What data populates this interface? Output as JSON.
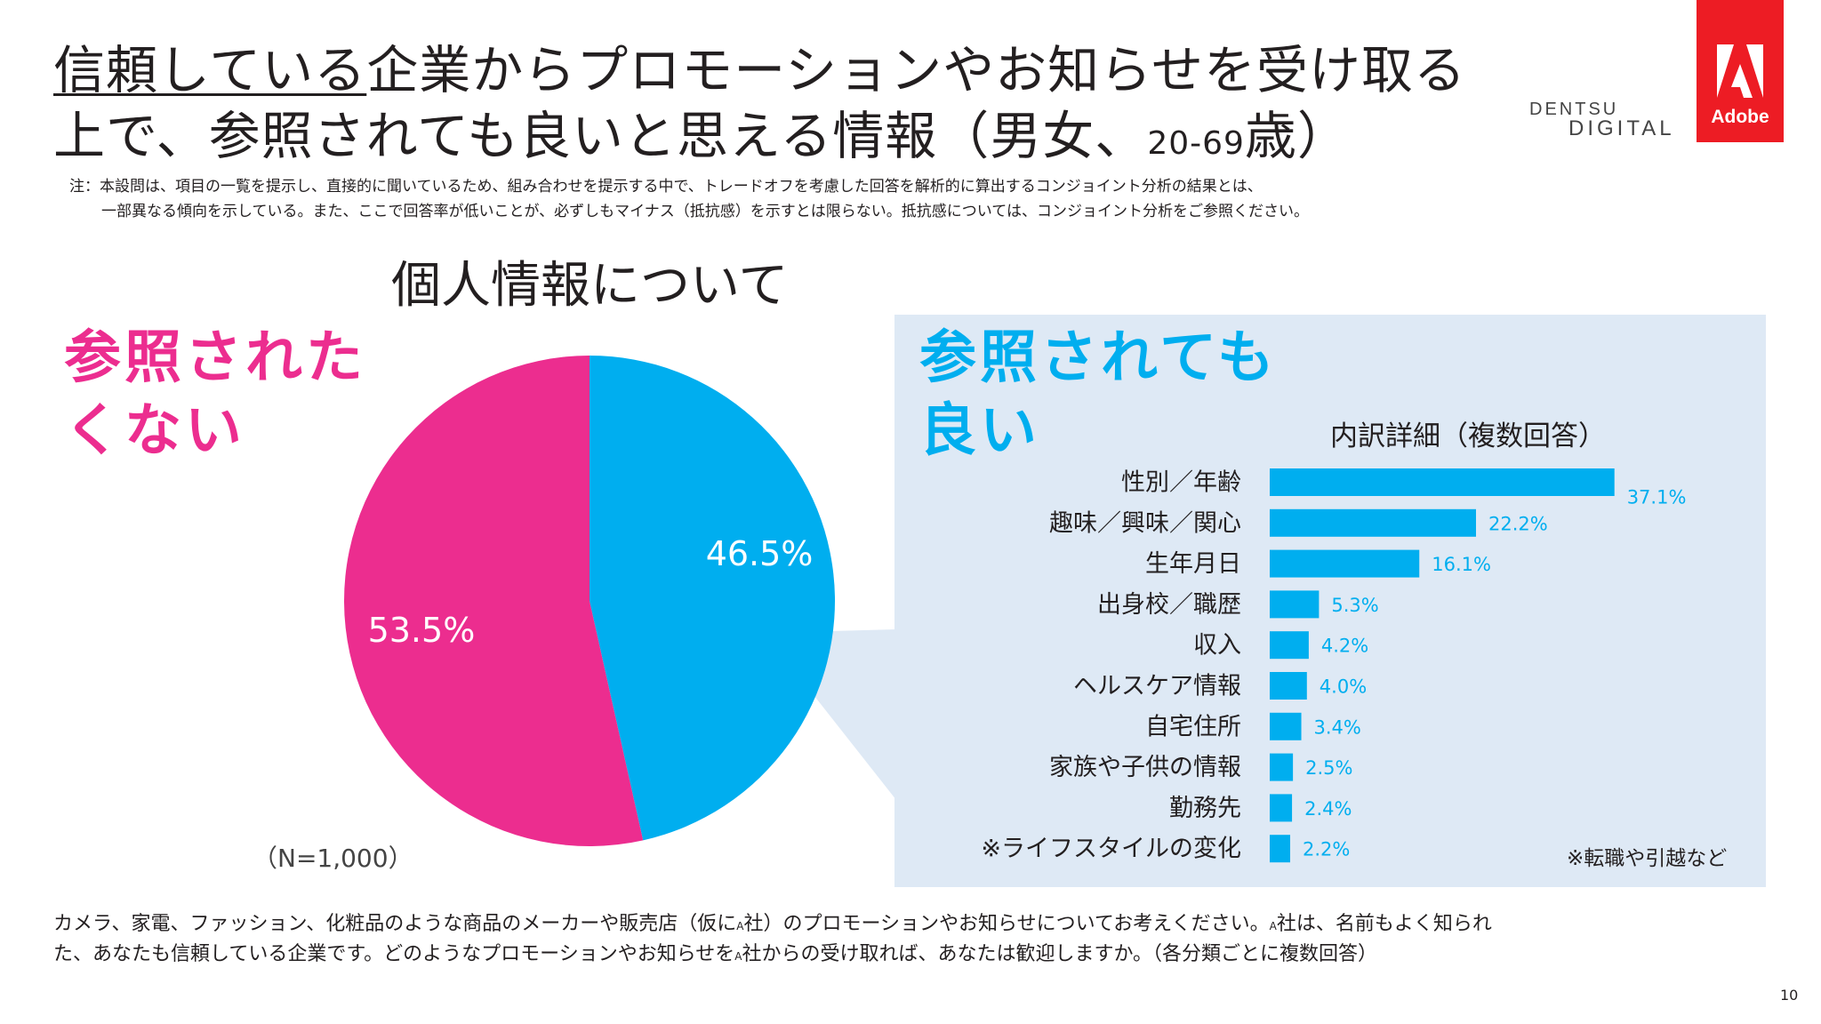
{
  "header": {
    "title_underlined": "信頼している",
    "title_line1_rest": "企業からプロモーションやお知らせを受け取る",
    "title_line2_main": "上で、参照されても良いと思える情報（男女、",
    "title_age": "20-69",
    "title_line2_end": "歳）",
    "brand_top": "DENTSU",
    "brand_bottom": "DIGITAL",
    "adobe_text": "Adobe"
  },
  "note": {
    "line1": "注：本設問は、項目の一覧を提示し、直接的に聞いているため、組み合わせを提示する中で、トレードオフを考慮した回答を解析的に算出するコンジョイント分析の結果とは、",
    "line2": "一部異なる傾向を示している。また、ここで回答率が低いことが、必ずしもマイナス（抵抗感）を示すとは限らない。抵抗感については、コンジョイント分析をご参照ください。"
  },
  "labels": {
    "pink_line1": "参照された",
    "pink_line2": "くない",
    "blue_line1": "参照されても",
    "blue_line2": "良い",
    "footnote_right": "※転職や引越など",
    "sample_size": "（N=1,000）"
  },
  "question": {
    "l1_a": "カメラ、家電、ファッション、化粧品のような商品のメーカーや販売店（仮に",
    "l1_sa": "A",
    "l1_b": "社）のプロモーションやお知らせについてお考えください。",
    "l1_sa2": "A",
    "l1_c": "社は、名前もよく知られ",
    "l2_a": "た、あなたも信頼している企業です。どのようなプロモーションやお知らせを",
    "l2_sa": "A",
    "l2_b": "社からの受け取れば、あなたは歓迎しますか。（各分類ごとに複数回答）"
  },
  "page_number": "10",
  "colors": {
    "pink": "#ec2d8f",
    "blue": "#00aeef",
    "panel": "#dee9f5",
    "adobe_red": "#ed1c24"
  },
  "chart_data": [
    {
      "type": "pie",
      "title": "個人情報について",
      "unit": "%",
      "slices": [
        {
          "label": "参照されても良い",
          "value": 46.5,
          "display": "46.5%",
          "color": "#00aeef"
        },
        {
          "label": "参照されたくない",
          "value": 53.5,
          "display": "53.5%",
          "color": "#ec2d8f"
        }
      ]
    },
    {
      "type": "bar",
      "orientation": "horizontal",
      "title": "内訳詳細（複数回答）",
      "unit": "%",
      "categories": [
        "性別／年齢",
        "趣味／興味／関心",
        "生年月日",
        "出身校／職歴",
        "収入",
        "ヘルスケア情報",
        "自宅住所",
        "家族や子供の情報",
        "勤務先",
        "※ライフスタイルの変化"
      ],
      "values": [
        37.1,
        22.2,
        16.1,
        5.3,
        4.2,
        4.0,
        3.4,
        2.5,
        2.4,
        2.2
      ],
      "value_labels": [
        "37.1%",
        "22.2%",
        "16.1%",
        "5.3%",
        "4.2%",
        "4.0%",
        "3.4%",
        "2.5%",
        "2.4%",
        "2.2%"
      ],
      "color": "#00aeef"
    }
  ]
}
